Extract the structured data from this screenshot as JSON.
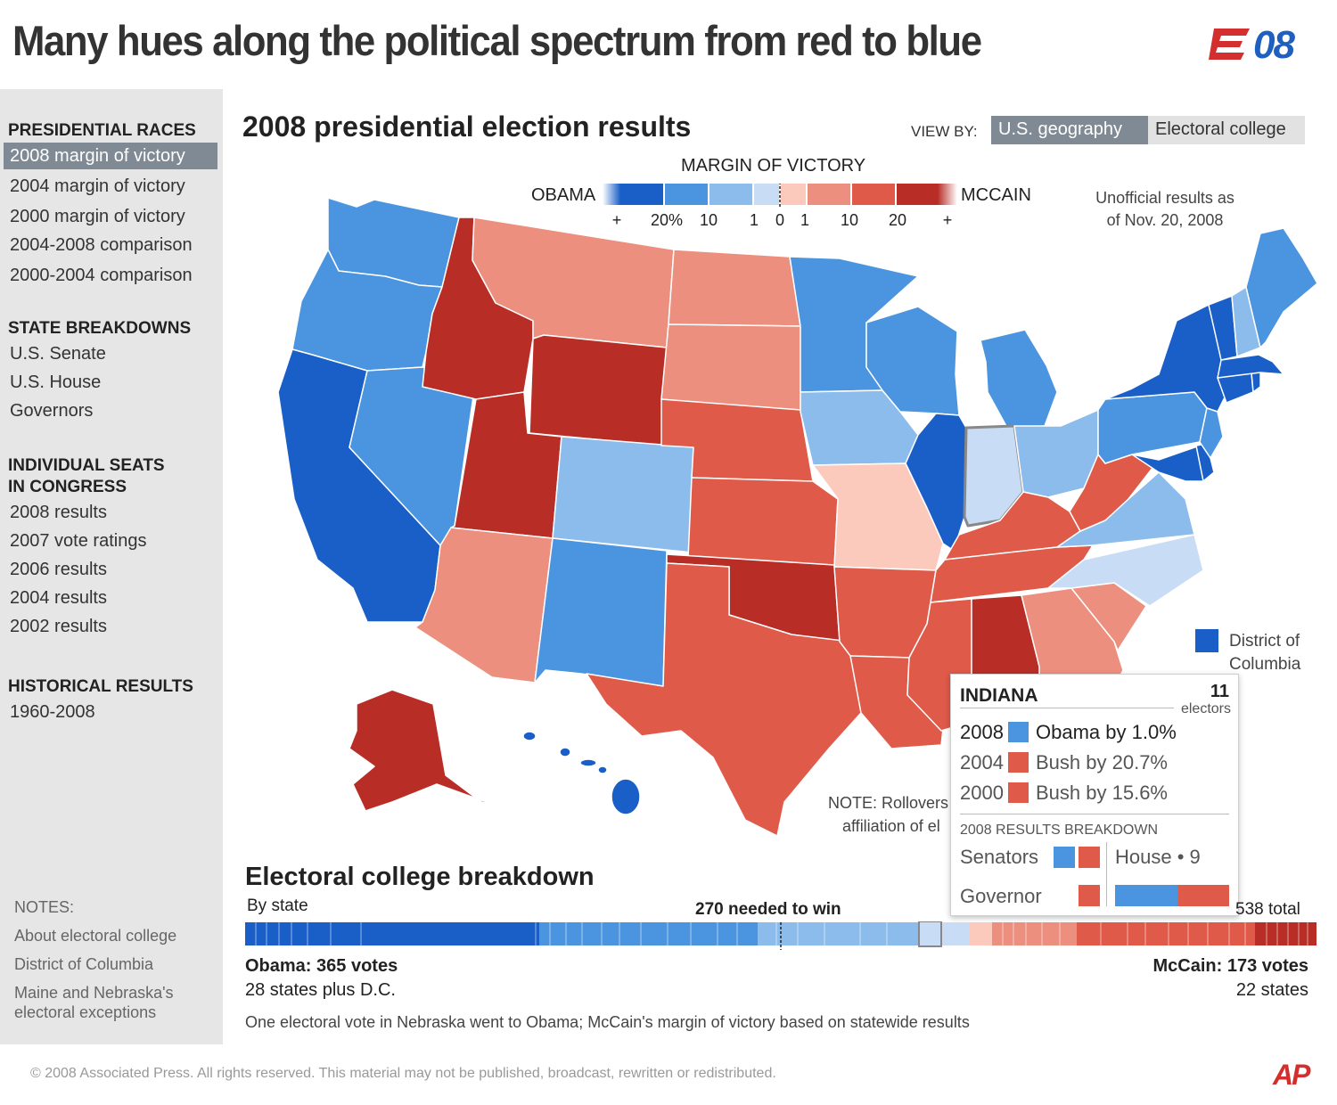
{
  "headline": "Many hues along the political spectrum from red to blue",
  "logo": {
    "mark": "08"
  },
  "sidebar": {
    "presidential_heading": "PRESIDENTIAL RACES",
    "presidential_items": [
      "2008 margin of victory",
      "2004 margin of victory",
      "2000 margin of victory",
      "2004-2008 comparison",
      "2000-2004 comparison"
    ],
    "state_heading": "STATE BREAKDOWNS",
    "state_items": [
      "U.S. Senate",
      "U.S. House",
      "Governors"
    ],
    "congress_heading_1": "INDIVIDUAL SEATS",
    "congress_heading_2": "IN CONGRESS",
    "congress_items": [
      "2008 results",
      "2007 vote ratings",
      "2006 results",
      "2004 results",
      "2002 results"
    ],
    "historical_heading": "HISTORICAL RESULTS",
    "historical_items": [
      "1960-2008"
    ],
    "notes_heading": "NOTES:",
    "notes_items": [
      "About electoral college",
      "District of Columbia",
      "Maine and Nebraska's",
      "electoral exceptions"
    ]
  },
  "map": {
    "title": "2008 presidential election results",
    "view_by_label": "VIEW BY:",
    "view_options": [
      "U.S. geography",
      "Electoral college"
    ],
    "legend": {
      "title": "MARGIN OF VICTORY",
      "left_label": "OBAMA",
      "right_label": "MCCAIN",
      "ticks": [
        "+",
        "20%",
        "10",
        "1",
        "0",
        "1",
        "10",
        "20",
        "+"
      ],
      "colors": [
        "#1a5fc8",
        "#4a94e0",
        "#8cbceb",
        "#c8dcf5",
        "#fccabd",
        "#ec8f7e",
        "#df5a48",
        "#b82e27"
      ]
    },
    "unofficial_note_1": "Unofficial results as",
    "unofficial_note_2": "of Nov. 20, 2008",
    "dc_label_1": "District of",
    "dc_label_2": "Columbia",
    "footnote_1": "NOTE: Rollovers",
    "footnote_2": "affiliation of el"
  },
  "tooltip": {
    "state": "INDIANA",
    "electors": "11",
    "electors_label": "electors",
    "rows": [
      {
        "year": "2008",
        "text": "Obama by 1.0%",
        "color": "#4a94e0"
      },
      {
        "year": "2004",
        "text": "Bush by 20.7%",
        "color": "#df5a48"
      },
      {
        "year": "2000",
        "text": "Bush by 15.6%",
        "color": "#df5a48"
      }
    ],
    "breakdown_title": "2008 RESULTS BREAKDOWN",
    "senators_label": "Senators",
    "house_label": "House • 9",
    "governor_label": "Governor"
  },
  "electoral": {
    "title": "Electoral college breakdown",
    "subtitle": "By state",
    "needed": "270 needed to win",
    "total": "538 total",
    "obama_votes": "Obama: 365 votes",
    "obama_states": "28 states plus D.C.",
    "mccain_votes": "McCain: 173 votes",
    "mccain_states": "22 states",
    "note": "One electoral vote in Nebraska went to Obama; McCain's margin of victory based on statewide results"
  },
  "copyright": "©  2008 Associated Press. All rights reserved. This material may not be published, broadcast, rewritten or redistributed.",
  "ap_logo": "AP"
}
